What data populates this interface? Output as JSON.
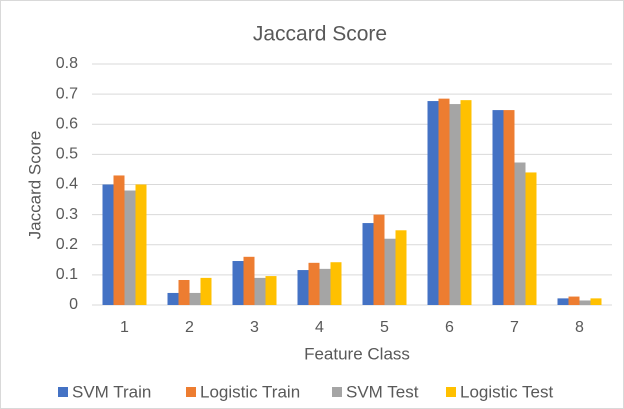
{
  "chart_data": {
    "type": "bar",
    "title": "Jaccard Score",
    "x_label": "Feature Class",
    "y_label": "Jaccard Score",
    "categories": [
      "1",
      "2",
      "3",
      "4",
      "5",
      "6",
      "7",
      "8"
    ],
    "series": [
      {
        "name": "SVM Train",
        "color": "#4472c4",
        "values": [
          0.4,
          0.04,
          0.146,
          0.116,
          0.272,
          0.677,
          0.647,
          0.022
        ]
      },
      {
        "name": "Logistic Train",
        "color": "#ed7d31",
        "values": [
          0.43,
          0.083,
          0.16,
          0.14,
          0.3,
          0.685,
          0.647,
          0.028
        ]
      },
      {
        "name": "SVM Test",
        "color": "#a5a5a5",
        "values": [
          0.38,
          0.04,
          0.09,
          0.12,
          0.22,
          0.667,
          0.473,
          0.015
        ]
      },
      {
        "name": "Logistic Test",
        "color": "#ffc000",
        "values": [
          0.4,
          0.09,
          0.096,
          0.142,
          0.248,
          0.68,
          0.44,
          0.022
        ]
      }
    ],
    "ylim": [
      0,
      0.8
    ],
    "yticks": [
      0,
      0.1,
      0.2,
      0.3,
      0.4,
      0.5,
      0.6,
      0.7,
      0.8
    ],
    "grid": true,
    "legend": "bottom"
  }
}
